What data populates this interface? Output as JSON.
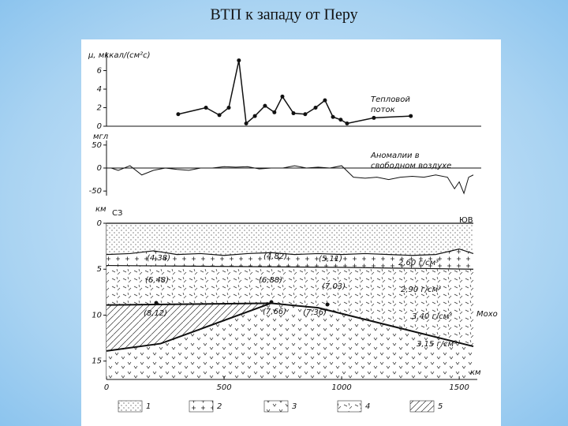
{
  "title": "ВТП к западу от Перу",
  "chart_data": [
    {
      "type": "line",
      "y_label": "μ, мккал/(см²с)",
      "annotation": [
        "Тепловой",
        "поток"
      ],
      "xlim": [
        0,
        1560
      ],
      "ylim": [
        0,
        8
      ],
      "yticks": [
        0,
        2,
        4,
        6
      ],
      "color": "#111111",
      "markers": true,
      "series": [
        {
          "x": [
            305,
            423,
            480,
            520,
            563,
            594,
            631,
            674,
            714,
            748,
            795,
            845,
            889,
            929,
            963,
            996,
            1023,
            1137,
            1294
          ],
          "values": [
            1.3,
            2.0,
            1.2,
            2.0,
            7.1,
            0.3,
            1.1,
            2.2,
            1.5,
            3.2,
            1.4,
            1.3,
            2.0,
            2.8,
            1.0,
            0.7,
            0.3,
            0.9,
            1.1
          ]
        }
      ]
    },
    {
      "type": "line",
      "y_label": "мгл",
      "annotation": [
        "Аномалии в",
        "свободном воздухе"
      ],
      "xlim": [
        0,
        1560
      ],
      "ylim": [
        -60,
        60
      ],
      "yticks": [
        50,
        0,
        -50
      ],
      "color": "#111111",
      "markers": false,
      "series": [
        {
          "x": [
            20,
            50,
            100,
            150,
            200,
            250,
            300,
            350,
            400,
            450,
            500,
            550,
            600,
            650,
            700,
            750,
            800,
            850,
            900,
            950,
            1000,
            1050,
            1100,
            1150,
            1200,
            1250,
            1300,
            1350,
            1400,
            1450,
            1480,
            1500,
            1520,
            1540,
            1560
          ],
          "values": [
            0,
            -5,
            5,
            -15,
            -5,
            0,
            -3,
            -5,
            0,
            0,
            3,
            2,
            3,
            -2,
            0,
            0,
            5,
            0,
            2,
            0,
            5,
            -20,
            -22,
            -20,
            -25,
            -20,
            -18,
            -20,
            -15,
            -20,
            -45,
            -30,
            -55,
            -20,
            -15
          ]
        }
      ]
    },
    {
      "type": "section",
      "y_label": "км",
      "x_label": "км",
      "left_label": "СЗ",
      "right_label": "ЮВ",
      "xlim": [
        0,
        1560
      ],
      "xticks": [
        0,
        500,
        1000,
        1500
      ],
      "ylim": [
        0,
        17
      ],
      "yticks": [
        0,
        5,
        10,
        15
      ],
      "lines": [
        {
          "x": [
            0,
            1560
          ],
          "values": [
            0,
            0
          ]
        },
        {
          "x": [
            0,
            100,
            200,
            300,
            400,
            500,
            600,
            700,
            800,
            900,
            1000,
            1100,
            1200,
            1300,
            1400,
            1500,
            1560
          ],
          "values": [
            3.4,
            3.3,
            3.0,
            3.4,
            3.3,
            3.5,
            3.3,
            3.2,
            3.4,
            3.3,
            3.4,
            3.3,
            3.4,
            3.5,
            3.4,
            2.8,
            3.3
          ]
        },
        {
          "x": [
            0,
            500,
            1000,
            1560
          ],
          "values": [
            4.6,
            4.7,
            4.8,
            5.0
          ]
        },
        {
          "x": [
            0,
            700,
            900,
            1560
          ],
          "values": [
            8.9,
            8.7,
            9.2,
            13.4
          ]
        },
        {
          "x": [
            0,
            230,
            700
          ],
          "values": [
            13.9,
            13.1,
            8.7
          ]
        }
      ],
      "point_labels": [
        "(4,38)",
        "(4,82)",
        "(5,11)",
        "(6,48)",
        "(6,88)",
        "(7,03)",
        "(8,12)",
        "(7,66)",
        "(7,36)"
      ],
      "layer_labels": [
        "2,60 г/см³",
        "2,90 г/см³",
        "3,40 г/см³",
        "3,15 г/см³",
        "Мохо"
      ],
      "legend": [
        "1",
        "2",
        "3",
        "4",
        "5"
      ]
    }
  ]
}
